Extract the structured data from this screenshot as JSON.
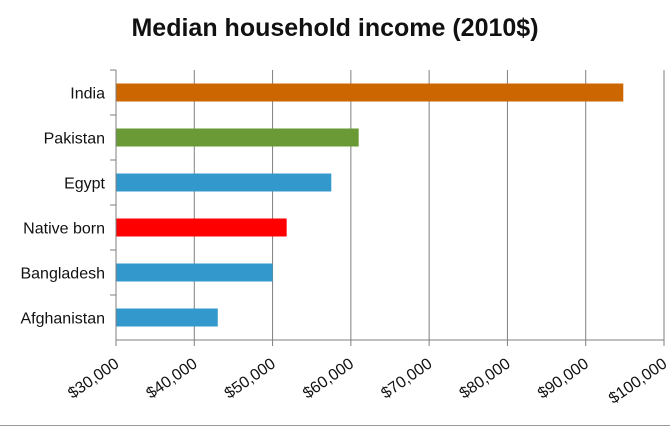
{
  "chart_data": {
    "type": "bar",
    "orientation": "horizontal",
    "title": "Median household income (2010$)",
    "categories": [
      "India",
      "Pakistan",
      "Egypt",
      "Native born",
      "Bangladesh",
      "Afghanistan"
    ],
    "values": [
      94800,
      61000,
      57500,
      51800,
      50000,
      43000
    ],
    "colors": [
      "#cc6600",
      "#6a9a35",
      "#3399cc",
      "#ff0000",
      "#3399cc",
      "#3399cc"
    ],
    "xlim": [
      30000,
      100000
    ],
    "x_ticks": [
      30000,
      40000,
      50000,
      60000,
      70000,
      80000,
      90000,
      100000
    ],
    "x_tick_labels": [
      "$30,000",
      "$40,000",
      "$50,000",
      "$60,000",
      "$70,000",
      "$80,000",
      "$90,000",
      "$100,000"
    ],
    "grid": true,
    "legend": "none"
  }
}
